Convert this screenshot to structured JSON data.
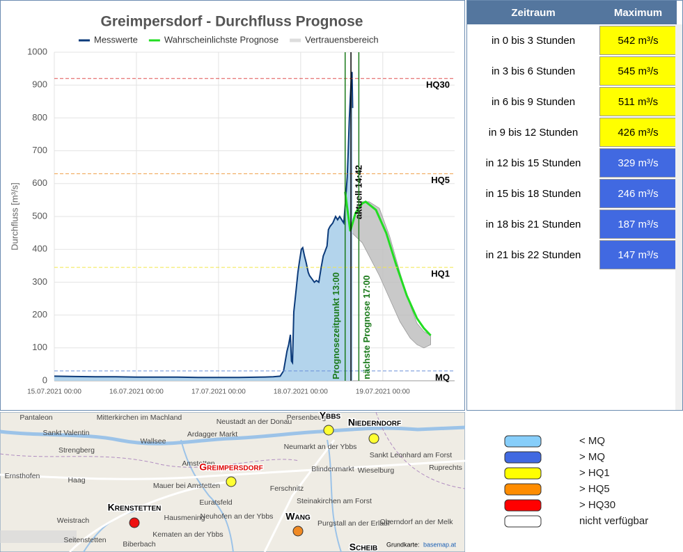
{
  "chart_data": {
    "type": "line",
    "title": "Greimpersdorf - Durchfluss Prognose",
    "y_label": "Durchfluss [m³/s]",
    "xlim": [
      0,
      117
    ],
    "ylim": [
      0,
      1000
    ],
    "xticks": [
      {
        "value": 0,
        "label": "15.07.2021 00:00"
      },
      {
        "value": 24,
        "label": "16.07.2021 00:00"
      },
      {
        "value": 48,
        "label": "17.07.2021 00:00"
      },
      {
        "value": 72,
        "label": "18.07.2021 00:00"
      },
      {
        "value": 96,
        "label": "19.07.2021 00:00"
      }
    ],
    "yticks": [
      0,
      100,
      200,
      300,
      400,
      500,
      600,
      700,
      800,
      900,
      1000
    ],
    "grid": true,
    "series": [
      {
        "name": "Messwerte",
        "color": "#0b3a7a",
        "fill": "#b3d4ec",
        "x": [
          0,
          6,
          12,
          18,
          24,
          30,
          36,
          42,
          48,
          54,
          60,
          64,
          66,
          67,
          68,
          68.5,
          69,
          69.3,
          69.6,
          70,
          70.6,
          71.2,
          71.6,
          72.2,
          72.6,
          73.1,
          73.6,
          74.2,
          74.6,
          75.3,
          76,
          76.6,
          77.3,
          78,
          78.6,
          79,
          79.7,
          80.1,
          80.6,
          81.4,
          82.2,
          82.8,
          83.4,
          84,
          84.6,
          85.2,
          85.6,
          85.9,
          86.2,
          86.5,
          86.8,
          87.0,
          87.2
        ],
        "values": [
          14,
          13,
          12,
          12,
          11,
          11,
          11,
          10,
          10,
          10,
          11,
          12,
          14,
          30,
          90,
          110,
          140,
          60,
          55,
          210,
          270,
          330,
          360,
          400,
          405,
          380,
          360,
          330,
          320,
          310,
          300,
          305,
          300,
          345,
          380,
          390,
          410,
          460,
          470,
          480,
          500,
          490,
          500,
          490,
          480,
          560,
          620,
          700,
          790,
          860,
          920,
          940,
          830
        ]
      },
      {
        "name": "Wahrscheinlichste Prognose",
        "color": "#22dd22",
        "x": [
          85,
          86.5,
          88,
          90,
          91,
          94,
          97,
          100,
          103,
          106,
          108,
          110
        ],
        "values": [
          575,
          455,
          510,
          540,
          545,
          520,
          450,
          350,
          260,
          190,
          160,
          138
        ]
      },
      {
        "name": "Vertrauensbereich",
        "color": "#bbbbbb",
        "x": [
          85,
          86.5,
          88,
          90,
          92,
          95,
          98,
          101,
          104,
          106,
          108,
          110
        ],
        "high": [
          575,
          455,
          515,
          545,
          545,
          525,
          440,
          330,
          230,
          175,
          150,
          138
        ],
        "low": [
          575,
          455,
          440,
          420,
          380,
          320,
          250,
          180,
          130,
          110,
          100,
          110
        ]
      }
    ],
    "thresholds": [
      {
        "label": "MQ",
        "value": 30,
        "color": "#6a8fd8"
      },
      {
        "label": "HQ1",
        "value": 345,
        "color": "#f2e64a"
      },
      {
        "label": "HQ5",
        "value": 630,
        "color": "#f0a04a"
      },
      {
        "label": "HQ30",
        "value": 920,
        "color": "#e05050"
      }
    ],
    "markers": [
      {
        "label": "Prognosezeitpunkt 13:00",
        "x": 85,
        "color": "#1a7a1a"
      },
      {
        "label": "aktuell 14:42",
        "x": 86.7,
        "color": "#000000"
      },
      {
        "label": "nächste Prognose 17:00",
        "x": 89,
        "color": "#1a7a1a"
      }
    ]
  },
  "table": {
    "header": [
      "Zeitraum",
      "Maximum"
    ],
    "rows": [
      [
        "in 0 bis 3 Stunden",
        "542 m³/s",
        "#ffff00"
      ],
      [
        "in 3 bis 6 Stunden",
        "545 m³/s",
        "#ffff00"
      ],
      [
        "in 6 bis 9 Stunden",
        "511 m³/s",
        "#ffff00"
      ],
      [
        "in 9 bis 12 Stunden",
        "426 m³/s",
        "#ffff00"
      ],
      [
        "in 12 bis 15 Stunden",
        "329 m³/s",
        "#4169e1"
      ],
      [
        "in 15 bis 18 Stunden",
        "246 m³/s",
        "#4169e1"
      ],
      [
        "in 18 bis 21 Stunden",
        "187 m³/s",
        "#4169e1"
      ],
      [
        "in 21 bis 22 Stunden",
        "147 m³/s",
        "#4169e1"
      ]
    ]
  },
  "map": {
    "places": [
      "Pantaleon",
      "Sankt Valentin",
      "Strengberg",
      "Ernsthofen",
      "Haag",
      "Mitterkirchen im Machland",
      "Wallsee",
      "Ardagger Markt",
      "Amstetten",
      "Mauer bei Amstetten",
      "Euratsfeld",
      "Hausmening",
      "Neuhofen an der Ybbs",
      "Kematen an der Ybbs",
      "Weistrach",
      "Seitenstetten",
      "Biberbach",
      "Persenbeug",
      "Neumarkt an der Ybbs",
      "Blindenmarkt",
      "Wieselburg",
      "Steinakirchen am Forst",
      "Purgstall an der Erlauf",
      "Oberndorf an der Melk",
      "Sankt Leonhard am Forst",
      "Ruprechts",
      "Neustadt an der Donau",
      "Ferschnitz"
    ],
    "stations": [
      {
        "name": "Ybbs",
        "color": "#ffff33"
      },
      {
        "name": "Niederndorf",
        "color": "#ffff33"
      },
      {
        "name": "Greimpersdorf",
        "color": "#ffff33"
      },
      {
        "name": "Krenstetten",
        "color": "#ee1111"
      },
      {
        "name": "Wang",
        "color": "#f08a24"
      },
      {
        "name": "Scheib",
        "color": null
      }
    ],
    "credit": "Grundkarte:",
    "credit_link": "basemap.at"
  },
  "legend": [
    {
      "label": "< MQ",
      "color": "#87cefa"
    },
    {
      "label": "> MQ",
      "color": "#4169e1"
    },
    {
      "label": "> HQ1",
      "color": "#ffff00"
    },
    {
      "label": "> HQ5",
      "color": "#ff8c00"
    },
    {
      "label": "> HQ30",
      "color": "#ff0000"
    },
    {
      "label": "nicht verfügbar",
      "color": "#ffffff"
    }
  ]
}
